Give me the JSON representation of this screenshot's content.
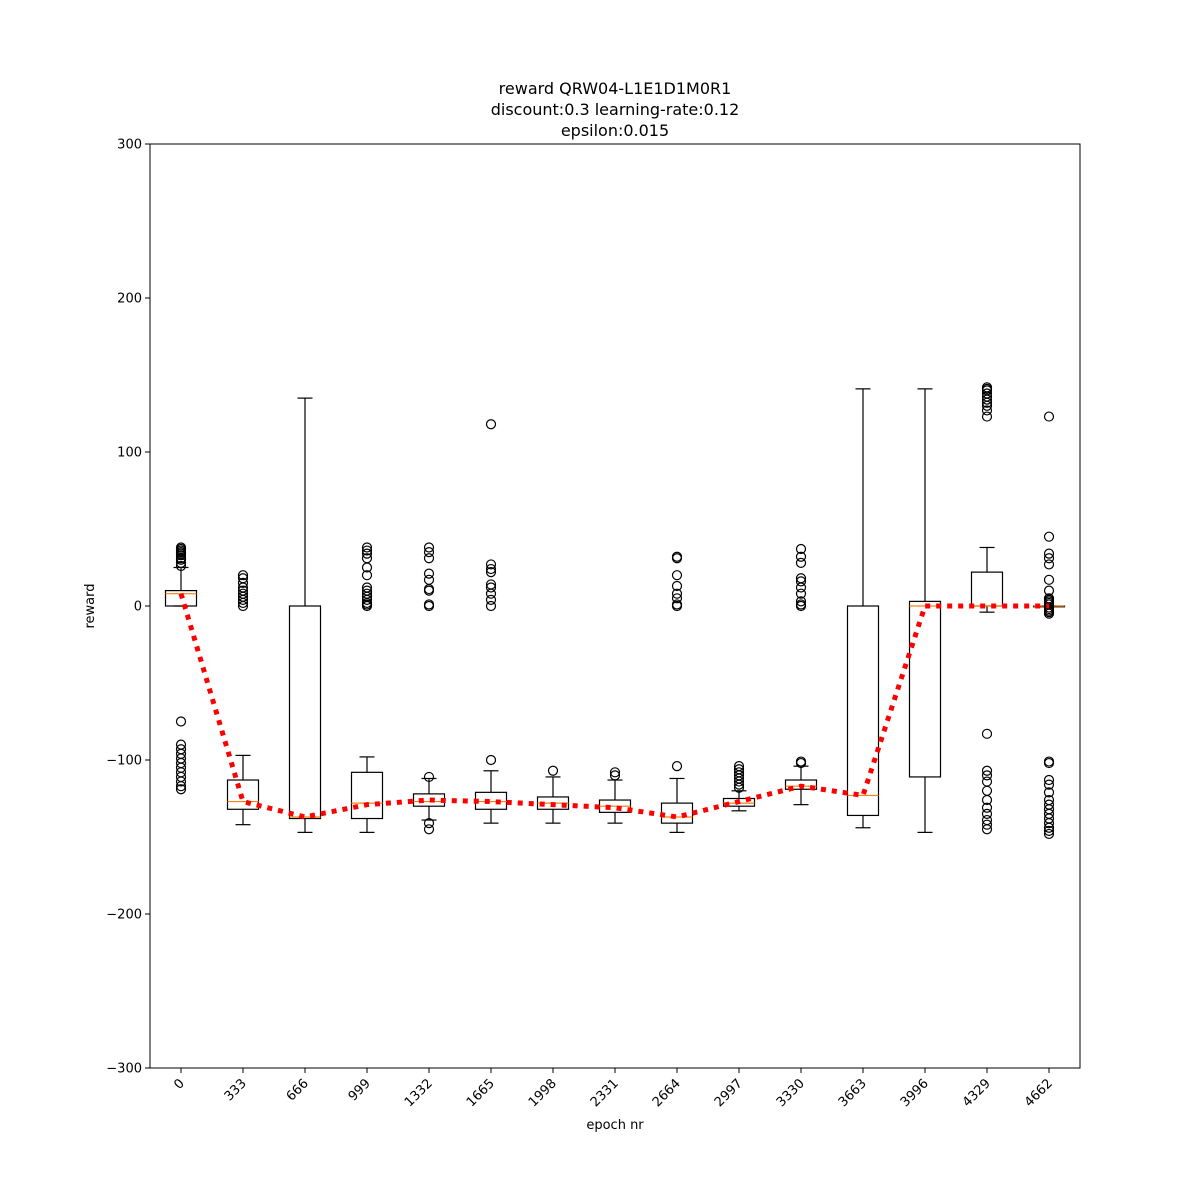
{
  "chart_data": {
    "type": "box",
    "title_lines": [
      "reward QRW04-L1E1D1M0R1",
      "discount:0.3 learning-rate:0.12",
      "epsilon:0.015"
    ],
    "xlabel": "epoch nr",
    "ylabel": "reward",
    "ylim": [
      -300,
      300
    ],
    "yticks": [
      -300,
      -200,
      -100,
      0,
      100,
      200,
      300
    ],
    "categories": [
      "0",
      "333",
      "666",
      "999",
      "1332",
      "1665",
      "1998",
      "2331",
      "2664",
      "2997",
      "3330",
      "3663",
      "3996",
      "4329",
      "4662"
    ],
    "boxes": [
      {
        "q1": 0,
        "median": 8,
        "q3": 10,
        "whislo": 0,
        "whishi": 25,
        "fliers": [
          26,
          28,
          30,
          31,
          33,
          34,
          35,
          36,
          37,
          38,
          -75,
          -90,
          -93,
          -96,
          -99,
          -102,
          -105,
          -108,
          -111,
          -114,
          -117,
          -119
        ]
      },
      {
        "q1": -132,
        "median": -127,
        "q3": -113,
        "whislo": -142,
        "whishi": -97,
        "fliers": [
          0,
          2,
          4,
          6,
          8,
          10,
          12,
          15,
          18,
          20
        ]
      },
      {
        "q1": -138,
        "median": -137,
        "q3": 0,
        "whislo": -147,
        "whishi": 135,
        "fliers": []
      },
      {
        "q1": -138,
        "median": -128,
        "q3": -108,
        "whislo": -147,
        "whishi": -98,
        "fliers": [
          0,
          1,
          2,
          4,
          6,
          8,
          10,
          12,
          20,
          25,
          31,
          34,
          36,
          38
        ]
      },
      {
        "q1": -130,
        "median": -127,
        "q3": -122,
        "whislo": -139,
        "whishi": -112,
        "fliers": [
          -111,
          -141,
          -145,
          0,
          1,
          10,
          11,
          17,
          21,
          31,
          35,
          38
        ]
      },
      {
        "q1": -132,
        "median": -127,
        "q3": -121,
        "whislo": -141,
        "whishi": -107,
        "fliers": [
          -100,
          0,
          4,
          8,
          12,
          14,
          22,
          24,
          27,
          118
        ]
      },
      {
        "q1": -132,
        "median": -128,
        "q3": -124,
        "whislo": -141,
        "whishi": -111,
        "fliers": [
          -107
        ]
      },
      {
        "q1": -134,
        "median": -130,
        "q3": -126,
        "whislo": -141,
        "whishi": -113,
        "fliers": [
          -110,
          -108
        ]
      },
      {
        "q1": -141,
        "median": -137,
        "q3": -128,
        "whislo": -147,
        "whishi": -112,
        "fliers": [
          -104,
          0,
          1,
          5,
          8,
          13,
          20,
          31,
          32
        ]
      },
      {
        "q1": -130,
        "median": -128,
        "q3": -125,
        "whislo": -133,
        "whishi": -120,
        "fliers": [
          -104,
          -106,
          -108,
          -110,
          -112,
          -114,
          -116,
          -118
        ]
      },
      {
        "q1": -119,
        "median": -117,
        "q3": -113,
        "whislo": -129,
        "whishi": -104,
        "fliers": [
          -101,
          -102,
          0,
          1,
          3,
          8,
          12,
          16,
          18,
          28,
          32,
          37
        ]
      },
      {
        "q1": -136,
        "median": -123,
        "q3": 0,
        "whislo": -144,
        "whishi": 141,
        "fliers": []
      },
      {
        "q1": -111,
        "median": 0,
        "q3": 3,
        "whislo": -147,
        "whishi": 141,
        "fliers": []
      },
      {
        "q1": 0,
        "median": 0,
        "q3": 22,
        "whislo": -4,
        "whishi": 38,
        "fliers": [
          123,
          127,
          130,
          132,
          134,
          136,
          138,
          140,
          141,
          142,
          -83,
          -107,
          -110,
          -114,
          -120,
          -126,
          -131,
          -135,
          -139,
          -142,
          -145
        ]
      },
      {
        "q1": 0,
        "median": 0,
        "q3": 0,
        "whislo": 0,
        "whishi": 0,
        "fliers": [
          -1,
          -2,
          -3,
          -4,
          -5,
          1,
          2,
          3,
          4,
          5,
          10,
          17,
          27,
          31,
          34,
          45,
          123,
          -101,
          -102,
          -113,
          -116,
          -121,
          -126,
          -129,
          -132,
          -135,
          -138,
          -141,
          -144,
          -146,
          -148
        ]
      }
    ],
    "mean_line": {
      "values": [
        8,
        -127,
        -137,
        -129,
        -126,
        -127,
        -129,
        -131,
        -137,
        -127,
        -117,
        -123,
        0,
        0,
        0
      ],
      "color": "#ff0000",
      "style": "dotted"
    },
    "box_color": "#000000",
    "median_color": "#ff7f0e",
    "flier_marker": "open-circle",
    "grid": false
  }
}
